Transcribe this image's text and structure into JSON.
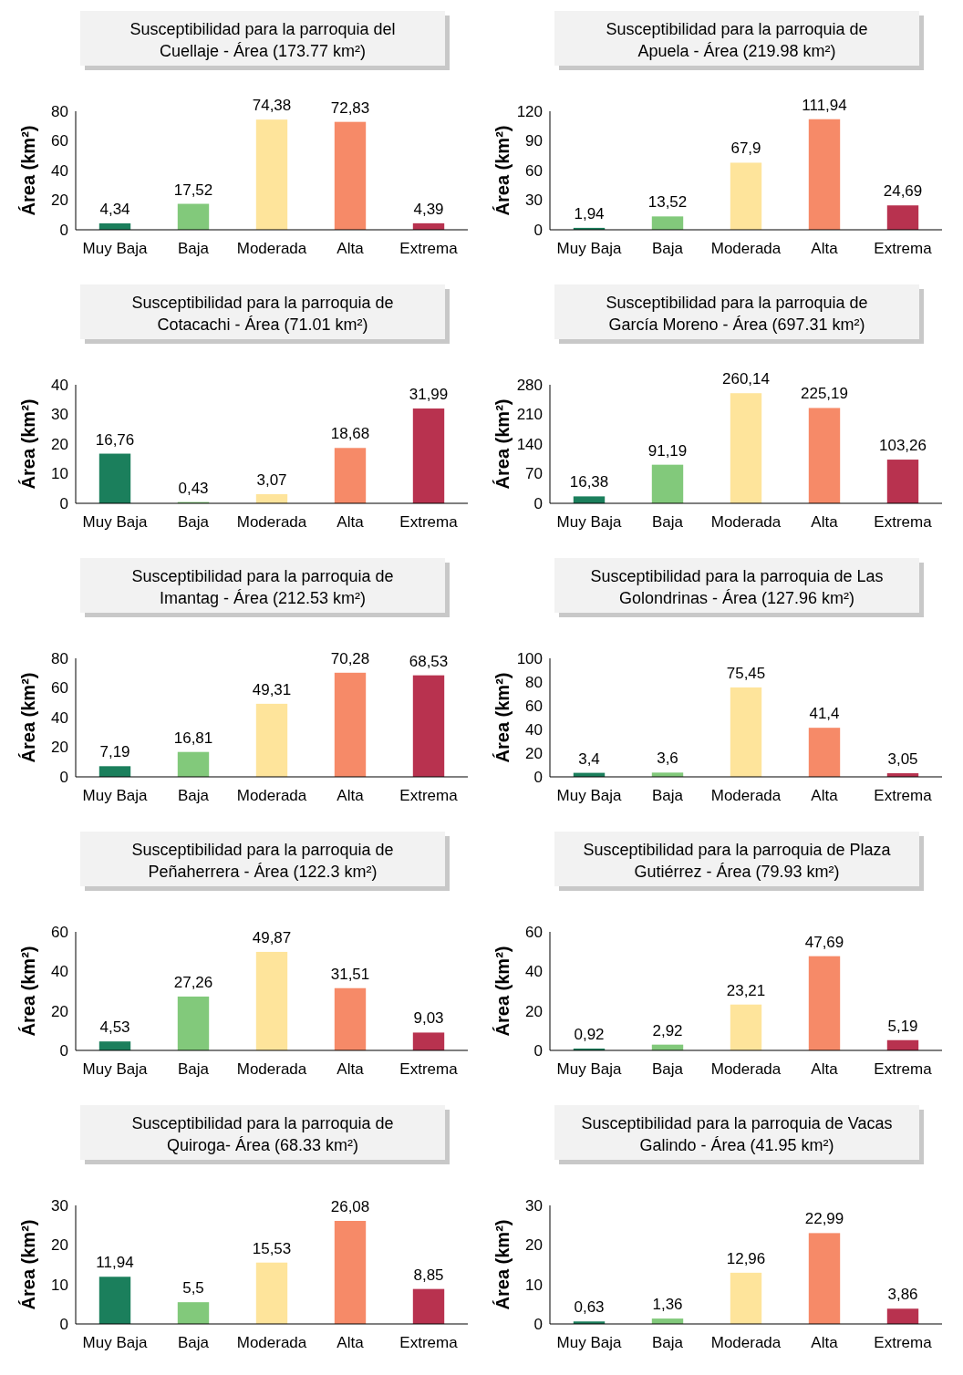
{
  "chart_data": [
    {
      "type": "bar",
      "title": "Susceptibilidad para la parroquia del Cuellaje - Área (173.77 km²)",
      "ylabel": "Área (km²)",
      "categories": [
        "Muy Baja",
        "Baja",
        "Moderada",
        "Alta",
        "Extrema"
      ],
      "values": [
        4.34,
        17.52,
        74.38,
        72.83,
        4.39
      ],
      "value_labels": [
        "4,34",
        "17,52",
        "74,38",
        "72,83",
        "4,39"
      ],
      "colors": [
        "#1b7f5c",
        "#82c97b",
        "#fee49b",
        "#f68a68",
        "#b8324f"
      ],
      "ylim": [
        0,
        80
      ],
      "yticks": [
        0,
        20,
        40,
        60,
        80
      ]
    },
    {
      "type": "bar",
      "title": "Susceptibilidad para la parroquia de Apuela - Área (219.98 km²)",
      "ylabel": "Área (km²)",
      "categories": [
        "Muy Baja",
        "Baja",
        "Moderada",
        "Alta",
        "Extrema"
      ],
      "values": [
        1.94,
        13.52,
        67.9,
        111.94,
        24.69
      ],
      "value_labels": [
        "1,94",
        "13,52",
        "67,9",
        "111,94",
        "24,69"
      ],
      "colors": [
        "#1b7f5c",
        "#82c97b",
        "#fee49b",
        "#f68a68",
        "#b8324f"
      ],
      "ylim": [
        0,
        120
      ],
      "yticks": [
        0,
        30,
        60,
        90,
        120
      ]
    },
    {
      "type": "bar",
      "title": "Susceptibilidad para la parroquia de Cotacachi - Área (71.01 km²)",
      "ylabel": "Área (km²)",
      "categories": [
        "Muy Baja",
        "Baja",
        "Moderada",
        "Alta",
        "Extrema"
      ],
      "values": [
        16.76,
        0.43,
        3.07,
        18.68,
        31.99
      ],
      "value_labels": [
        "16,76",
        "0,43",
        "3,07",
        "18,68",
        "31,99"
      ],
      "colors": [
        "#1b7f5c",
        "#82c97b",
        "#fee49b",
        "#f68a68",
        "#b8324f"
      ],
      "ylim": [
        0,
        40
      ],
      "yticks": [
        0,
        10,
        20,
        30,
        40
      ]
    },
    {
      "type": "bar",
      "title": "Susceptibilidad para la parroquia de García Moreno - Área (697.31 km²)",
      "ylabel": "Área (km²)",
      "categories": [
        "Muy Baja",
        "Baja",
        "Moderada",
        "Alta",
        "Extrema"
      ],
      "values": [
        16.38,
        91.19,
        260.14,
        225.19,
        103.26
      ],
      "value_labels": [
        "16,38",
        "91,19",
        "260,14",
        "225,19",
        "103,26"
      ],
      "colors": [
        "#1b7f5c",
        "#82c97b",
        "#fee49b",
        "#f68a68",
        "#b8324f"
      ],
      "ylim": [
        0,
        280
      ],
      "yticks": [
        0,
        70,
        140,
        210,
        280
      ]
    },
    {
      "type": "bar",
      "title": "Susceptibilidad para la parroquia de Imantag - Área (212.53 km²)",
      "ylabel": "Área (km²)",
      "categories": [
        "Muy Baja",
        "Baja",
        "Moderada",
        "Alta",
        "Extrema"
      ],
      "values": [
        7.19,
        16.81,
        49.31,
        70.28,
        68.53
      ],
      "value_labels": [
        "7,19",
        "16,81",
        "49,31",
        "70,28",
        "68,53"
      ],
      "colors": [
        "#1b7f5c",
        "#82c97b",
        "#fee49b",
        "#f68a68",
        "#b8324f"
      ],
      "ylim": [
        0,
        80
      ],
      "yticks": [
        0,
        20,
        40,
        60,
        80
      ]
    },
    {
      "type": "bar",
      "title": "Susceptibilidad para la parroquia de Las Golondrinas - Área (127.96 km²)",
      "ylabel": "Área (km²)",
      "categories": [
        "Muy Baja",
        "Baja",
        "Moderada",
        "Alta",
        "Extrema"
      ],
      "values": [
        3.4,
        3.6,
        75.45,
        41.4,
        3.05
      ],
      "value_labels": [
        "3,4",
        "3,6",
        "75,45",
        "41,4",
        "3,05"
      ],
      "colors": [
        "#1b7f5c",
        "#82c97b",
        "#fee49b",
        "#f68a68",
        "#b8324f"
      ],
      "ylim": [
        0,
        100
      ],
      "yticks": [
        0,
        20,
        40,
        60,
        80,
        100
      ]
    },
    {
      "type": "bar",
      "title": "Susceptibilidad para la parroquia de Peñaherrera - Área (122.3 km²)",
      "ylabel": "Área (km²)",
      "categories": [
        "Muy Baja",
        "Baja",
        "Moderada",
        "Alta",
        "Extrema"
      ],
      "values": [
        4.53,
        27.26,
        49.87,
        31.51,
        9.03
      ],
      "value_labels": [
        "4,53",
        "27,26",
        "49,87",
        "31,51",
        "9,03"
      ],
      "colors": [
        "#1b7f5c",
        "#82c97b",
        "#fee49b",
        "#f68a68",
        "#b8324f"
      ],
      "ylim": [
        0,
        60
      ],
      "yticks": [
        0,
        20,
        40,
        60
      ]
    },
    {
      "type": "bar",
      "title": "Susceptibilidad para la parroquia de Plaza Gutiérrez - Área (79.93 km²)",
      "ylabel": "Área (km²)",
      "categories": [
        "Muy Baja",
        "Baja",
        "Moderada",
        "Alta",
        "Extrema"
      ],
      "values": [
        0.92,
        2.92,
        23.21,
        47.69,
        5.19
      ],
      "value_labels": [
        "0,92",
        "2,92",
        "23,21",
        "47,69",
        "5,19"
      ],
      "colors": [
        "#1b7f5c",
        "#82c97b",
        "#fee49b",
        "#f68a68",
        "#b8324f"
      ],
      "ylim": [
        0,
        60
      ],
      "yticks": [
        0,
        20,
        40,
        60
      ]
    },
    {
      "type": "bar",
      "title": "Susceptibilidad para la parroquia de Quiroga- Área (68.33 km²)",
      "ylabel": "Área (km²)",
      "categories": [
        "Muy Baja",
        "Baja",
        "Moderada",
        "Alta",
        "Extrema"
      ],
      "values": [
        11.94,
        5.5,
        15.53,
        26.08,
        8.85
      ],
      "value_labels": [
        "11,94",
        "5,5",
        "15,53",
        "26,08",
        "8,85"
      ],
      "colors": [
        "#1b7f5c",
        "#82c97b",
        "#fee49b",
        "#f68a68",
        "#b8324f"
      ],
      "ylim": [
        0,
        30
      ],
      "yticks": [
        0,
        10,
        20,
        30
      ]
    },
    {
      "type": "bar",
      "title": "Susceptibilidad para la parroquia de Vacas Galindo - Área (41.95 km²)",
      "ylabel": "Área (km²)",
      "categories": [
        "Muy Baja",
        "Baja",
        "Moderada",
        "Alta",
        "Extrema"
      ],
      "values": [
        0.63,
        1.36,
        12.96,
        22.99,
        3.86
      ],
      "value_labels": [
        "0,63",
        "1,36",
        "12,96",
        "22,99",
        "3,86"
      ],
      "colors": [
        "#1b7f5c",
        "#82c97b",
        "#fee49b",
        "#f68a68",
        "#b8324f"
      ],
      "ylim": [
        0,
        30
      ],
      "yticks": [
        0,
        10,
        20,
        30
      ]
    }
  ]
}
